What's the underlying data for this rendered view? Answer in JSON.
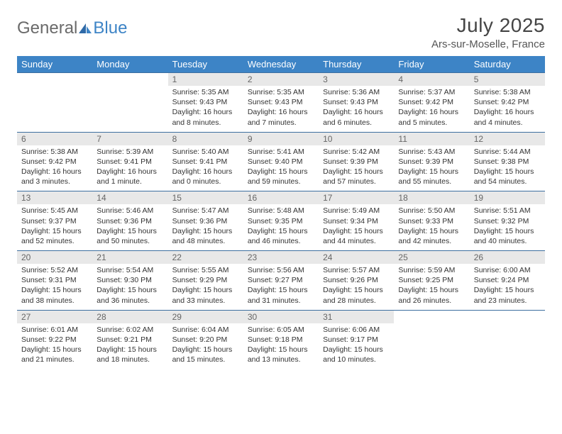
{
  "brand": {
    "part1": "General",
    "part2": "Blue"
  },
  "title": "July 2025",
  "location": "Ars-sur-Moselle, France",
  "colors": {
    "header_bg": "#3d84c6",
    "header_text": "#ffffff",
    "daynum_bg": "#e8e8e8",
    "daynum_text": "#666666",
    "week_border": "#3d6fa0",
    "body_text": "#333333",
    "title_text": "#454545",
    "logo_gray": "#6a6a6a",
    "logo_blue": "#3d84c6",
    "page_bg": "#ffffff"
  },
  "typography": {
    "title_fontsize": 28,
    "location_fontsize": 15,
    "dayhead_fontsize": 13,
    "daynum_fontsize": 12,
    "cell_fontsize": 10.5,
    "font_family": "Arial"
  },
  "day_headers": [
    "Sunday",
    "Monday",
    "Tuesday",
    "Wednesday",
    "Thursday",
    "Friday",
    "Saturday"
  ],
  "weeks": [
    [
      null,
      null,
      {
        "num": "1",
        "sunrise": "Sunrise: 5:35 AM",
        "sunset": "Sunset: 9:43 PM",
        "daylight": "Daylight: 16 hours and 8 minutes."
      },
      {
        "num": "2",
        "sunrise": "Sunrise: 5:35 AM",
        "sunset": "Sunset: 9:43 PM",
        "daylight": "Daylight: 16 hours and 7 minutes."
      },
      {
        "num": "3",
        "sunrise": "Sunrise: 5:36 AM",
        "sunset": "Sunset: 9:43 PM",
        "daylight": "Daylight: 16 hours and 6 minutes."
      },
      {
        "num": "4",
        "sunrise": "Sunrise: 5:37 AM",
        "sunset": "Sunset: 9:42 PM",
        "daylight": "Daylight: 16 hours and 5 minutes."
      },
      {
        "num": "5",
        "sunrise": "Sunrise: 5:38 AM",
        "sunset": "Sunset: 9:42 PM",
        "daylight": "Daylight: 16 hours and 4 minutes."
      }
    ],
    [
      {
        "num": "6",
        "sunrise": "Sunrise: 5:38 AM",
        "sunset": "Sunset: 9:42 PM",
        "daylight": "Daylight: 16 hours and 3 minutes."
      },
      {
        "num": "7",
        "sunrise": "Sunrise: 5:39 AM",
        "sunset": "Sunset: 9:41 PM",
        "daylight": "Daylight: 16 hours and 1 minute."
      },
      {
        "num": "8",
        "sunrise": "Sunrise: 5:40 AM",
        "sunset": "Sunset: 9:41 PM",
        "daylight": "Daylight: 16 hours and 0 minutes."
      },
      {
        "num": "9",
        "sunrise": "Sunrise: 5:41 AM",
        "sunset": "Sunset: 9:40 PM",
        "daylight": "Daylight: 15 hours and 59 minutes."
      },
      {
        "num": "10",
        "sunrise": "Sunrise: 5:42 AM",
        "sunset": "Sunset: 9:39 PM",
        "daylight": "Daylight: 15 hours and 57 minutes."
      },
      {
        "num": "11",
        "sunrise": "Sunrise: 5:43 AM",
        "sunset": "Sunset: 9:39 PM",
        "daylight": "Daylight: 15 hours and 55 minutes."
      },
      {
        "num": "12",
        "sunrise": "Sunrise: 5:44 AM",
        "sunset": "Sunset: 9:38 PM",
        "daylight": "Daylight: 15 hours and 54 minutes."
      }
    ],
    [
      {
        "num": "13",
        "sunrise": "Sunrise: 5:45 AM",
        "sunset": "Sunset: 9:37 PM",
        "daylight": "Daylight: 15 hours and 52 minutes."
      },
      {
        "num": "14",
        "sunrise": "Sunrise: 5:46 AM",
        "sunset": "Sunset: 9:36 PM",
        "daylight": "Daylight: 15 hours and 50 minutes."
      },
      {
        "num": "15",
        "sunrise": "Sunrise: 5:47 AM",
        "sunset": "Sunset: 9:36 PM",
        "daylight": "Daylight: 15 hours and 48 minutes."
      },
      {
        "num": "16",
        "sunrise": "Sunrise: 5:48 AM",
        "sunset": "Sunset: 9:35 PM",
        "daylight": "Daylight: 15 hours and 46 minutes."
      },
      {
        "num": "17",
        "sunrise": "Sunrise: 5:49 AM",
        "sunset": "Sunset: 9:34 PM",
        "daylight": "Daylight: 15 hours and 44 minutes."
      },
      {
        "num": "18",
        "sunrise": "Sunrise: 5:50 AM",
        "sunset": "Sunset: 9:33 PM",
        "daylight": "Daylight: 15 hours and 42 minutes."
      },
      {
        "num": "19",
        "sunrise": "Sunrise: 5:51 AM",
        "sunset": "Sunset: 9:32 PM",
        "daylight": "Daylight: 15 hours and 40 minutes."
      }
    ],
    [
      {
        "num": "20",
        "sunrise": "Sunrise: 5:52 AM",
        "sunset": "Sunset: 9:31 PM",
        "daylight": "Daylight: 15 hours and 38 minutes."
      },
      {
        "num": "21",
        "sunrise": "Sunrise: 5:54 AM",
        "sunset": "Sunset: 9:30 PM",
        "daylight": "Daylight: 15 hours and 36 minutes."
      },
      {
        "num": "22",
        "sunrise": "Sunrise: 5:55 AM",
        "sunset": "Sunset: 9:29 PM",
        "daylight": "Daylight: 15 hours and 33 minutes."
      },
      {
        "num": "23",
        "sunrise": "Sunrise: 5:56 AM",
        "sunset": "Sunset: 9:27 PM",
        "daylight": "Daylight: 15 hours and 31 minutes."
      },
      {
        "num": "24",
        "sunrise": "Sunrise: 5:57 AM",
        "sunset": "Sunset: 9:26 PM",
        "daylight": "Daylight: 15 hours and 28 minutes."
      },
      {
        "num": "25",
        "sunrise": "Sunrise: 5:59 AM",
        "sunset": "Sunset: 9:25 PM",
        "daylight": "Daylight: 15 hours and 26 minutes."
      },
      {
        "num": "26",
        "sunrise": "Sunrise: 6:00 AM",
        "sunset": "Sunset: 9:24 PM",
        "daylight": "Daylight: 15 hours and 23 minutes."
      }
    ],
    [
      {
        "num": "27",
        "sunrise": "Sunrise: 6:01 AM",
        "sunset": "Sunset: 9:22 PM",
        "daylight": "Daylight: 15 hours and 21 minutes."
      },
      {
        "num": "28",
        "sunrise": "Sunrise: 6:02 AM",
        "sunset": "Sunset: 9:21 PM",
        "daylight": "Daylight: 15 hours and 18 minutes."
      },
      {
        "num": "29",
        "sunrise": "Sunrise: 6:04 AM",
        "sunset": "Sunset: 9:20 PM",
        "daylight": "Daylight: 15 hours and 15 minutes."
      },
      {
        "num": "30",
        "sunrise": "Sunrise: 6:05 AM",
        "sunset": "Sunset: 9:18 PM",
        "daylight": "Daylight: 15 hours and 13 minutes."
      },
      {
        "num": "31",
        "sunrise": "Sunrise: 6:06 AM",
        "sunset": "Sunset: 9:17 PM",
        "daylight": "Daylight: 15 hours and 10 minutes."
      },
      null,
      null
    ]
  ]
}
